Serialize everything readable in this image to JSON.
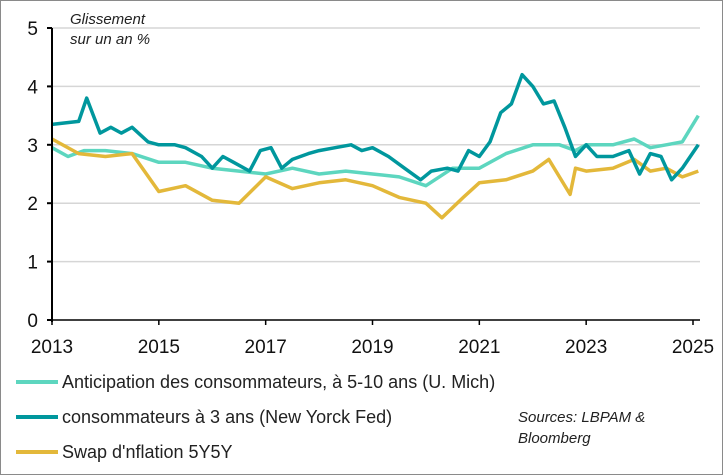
{
  "chart_data": {
    "type": "line",
    "title": "",
    "annotation": [
      "Glissement",
      "sur un an %"
    ],
    "xlabel": "",
    "ylabel": "",
    "xlim": [
      2013,
      2025.2
    ],
    "ylim": [
      0,
      5
    ],
    "xticks": [
      "2013",
      "2015",
      "2017",
      "2019",
      "2021",
      "2023",
      "2025"
    ],
    "yticks": [
      "0",
      "1",
      "2",
      "3",
      "4",
      "5"
    ],
    "grid": "horizontal",
    "legend_position": "bottom",
    "source": [
      "Sources: LBPAM &",
      "Bloomberg"
    ],
    "series": [
      {
        "name": "Anticipation des consommateurs, à 5-10 ans (U. Mich)",
        "color": "#5dd6bf",
        "x": [
          2013,
          2013.3,
          2013.6,
          2014,
          2014.5,
          2015,
          2015.5,
          2016,
          2016.5,
          2017,
          2017.5,
          2018,
          2018.5,
          2019,
          2019.5,
          2020,
          2020.5,
          2021,
          2021.5,
          2022,
          2022.5,
          2022.8,
          2023,
          2023.5,
          2023.9,
          2024.2,
          2024.5,
          2024.8,
          2025.1
        ],
        "y": [
          2.95,
          2.8,
          2.9,
          2.9,
          2.85,
          2.7,
          2.7,
          2.6,
          2.55,
          2.5,
          2.6,
          2.5,
          2.55,
          2.5,
          2.45,
          2.3,
          2.6,
          2.6,
          2.85,
          3.0,
          3.0,
          2.9,
          3.0,
          3.0,
          3.1,
          2.95,
          3.0,
          3.05,
          3.5
        ]
      },
      {
        "name": "consommateurs à 3 ans (New Yorck Fed)",
        "color": "#00979d",
        "x": [
          2013,
          2013.5,
          2013.65,
          2013.9,
          2014.1,
          2014.3,
          2014.5,
          2014.8,
          2015,
          2015.3,
          2015.5,
          2015.8,
          2016,
          2016.2,
          2016.4,
          2016.7,
          2016.9,
          2017.1,
          2017.3,
          2017.5,
          2017.8,
          2018,
          2018.3,
          2018.6,
          2018.8,
          2019,
          2019.3,
          2019.6,
          2019.9,
          2020.1,
          2020.4,
          2020.6,
          2020.8,
          2021,
          2021.2,
          2021.4,
          2021.6,
          2021.8,
          2022,
          2022.2,
          2022.4,
          2022.6,
          2022.8,
          2023,
          2023.2,
          2023.5,
          2023.8,
          2024,
          2024.2,
          2024.4,
          2024.6,
          2024.8,
          2025.1
        ],
        "y": [
          3.35,
          3.4,
          3.8,
          3.2,
          3.3,
          3.2,
          3.3,
          3.05,
          3.0,
          3.0,
          2.95,
          2.8,
          2.6,
          2.8,
          2.7,
          2.55,
          2.9,
          2.95,
          2.6,
          2.75,
          2.85,
          2.9,
          2.95,
          3.0,
          2.9,
          2.95,
          2.8,
          2.6,
          2.4,
          2.55,
          2.6,
          2.55,
          2.9,
          2.8,
          3.05,
          3.55,
          3.7,
          4.2,
          4.0,
          3.7,
          3.75,
          3.3,
          2.8,
          3.0,
          2.8,
          2.8,
          2.9,
          2.5,
          2.85,
          2.8,
          2.4,
          2.6,
          3.0
        ]
      },
      {
        "name": "Swap d'nflation 5Y5Y",
        "color": "#e3b83a",
        "x": [
          2013,
          2013.5,
          2014,
          2014.5,
          2015,
          2015.5,
          2016,
          2016.5,
          2017,
          2017.5,
          2018,
          2018.5,
          2019,
          2019.5,
          2020,
          2020.3,
          2020.7,
          2021,
          2021.5,
          2022,
          2022.3,
          2022.7,
          2022.8,
          2023,
          2023.5,
          2023.9,
          2024.2,
          2024.5,
          2024.8,
          2025.1
        ],
        "y": [
          3.1,
          2.85,
          2.8,
          2.85,
          2.2,
          2.3,
          2.05,
          2.0,
          2.45,
          2.25,
          2.35,
          2.4,
          2.3,
          2.1,
          2.0,
          1.75,
          2.1,
          2.35,
          2.4,
          2.55,
          2.75,
          2.15,
          2.6,
          2.55,
          2.6,
          2.75,
          2.55,
          2.6,
          2.45,
          2.55
        ]
      }
    ]
  }
}
